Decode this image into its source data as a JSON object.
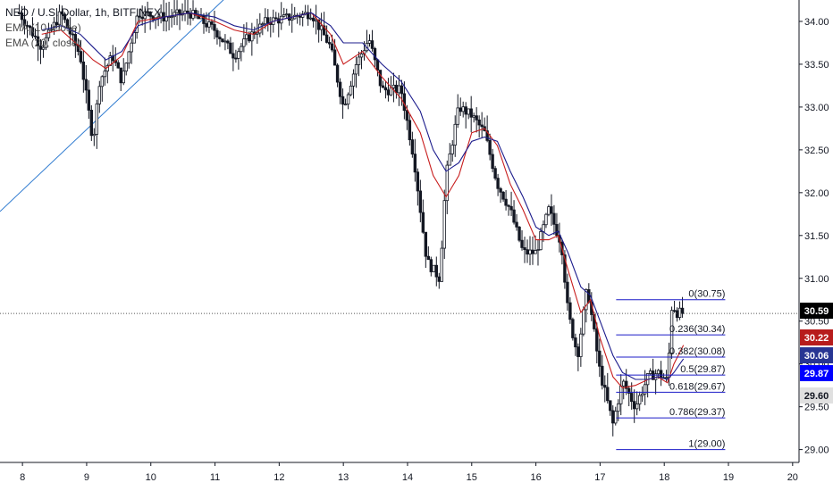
{
  "legend": {
    "symbol": "NEO / U.S. Dollar, 1h, BITFINEX",
    "ema10": "EMA (10, close)",
    "ema20": "EMA (20, close)"
  },
  "colors": {
    "candle": "#131722",
    "ema10": "#c81e1e",
    "ema20": "#1c1c8c",
    "trendline": "#2f7bd0",
    "fib": "#1c1cc8",
    "last_price": "#000000",
    "ema10_badge": "#b71c1c",
    "ema20_badge": "#283593",
    "fib_badge": "#0000ff",
    "low_badge": "#e0e0e0"
  },
  "chart_data": {
    "type": "candlestick",
    "x_ticks": [
      "8",
      "9",
      "10",
      "11",
      "12",
      "13",
      "14",
      "15",
      "16",
      "17",
      "18",
      "19",
      "20"
    ],
    "y_ticks": [
      "29.00",
      "29.50",
      "30.00",
      "30.50",
      "31.00",
      "31.50",
      "32.00",
      "32.50",
      "33.00",
      "33.50",
      "34.00"
    ],
    "ylim": [
      28.85,
      34.25
    ],
    "x_range_days": [
      7.65,
      20.1
    ],
    "last_price": "30.59",
    "badges": [
      {
        "value": "30.59",
        "role": "last"
      },
      {
        "value": "30.22",
        "role": "ema10"
      },
      {
        "value": "30.06",
        "role": "ema20"
      },
      {
        "value": "29.87",
        "role": "fib"
      },
      {
        "value": "29.60",
        "role": "low"
      }
    ],
    "fib_levels": [
      {
        "label": "0(30.75)",
        "value": 30.75
      },
      {
        "label": "0.236(30.34)",
        "value": 30.34
      },
      {
        "label": "0.382(30.08)",
        "value": 30.08
      },
      {
        "label": "0.5(29.87)",
        "value": 29.87
      },
      {
        "label": "0.618(29.67)",
        "value": 29.67
      },
      {
        "label": "0.786(29.37)",
        "value": 29.37
      },
      {
        "label": "1(29.00)",
        "value": 29.0
      }
    ],
    "fib_x_range": [
      17.25,
      18.95
    ],
    "trendline": {
      "from": [
        7.65,
        31.78
      ],
      "to": [
        11.2,
        34.3
      ]
    },
    "series": [
      {
        "name": "EMA (10, close)",
        "values": [
          [
            8.3,
            33.85
          ],
          [
            8.6,
            33.9
          ],
          [
            8.9,
            33.7
          ],
          [
            9.1,
            33.55
          ],
          [
            9.3,
            33.45
          ],
          [
            9.55,
            33.6
          ],
          [
            9.8,
            34.0
          ],
          [
            10.2,
            34.05
          ],
          [
            10.6,
            34.1
          ],
          [
            11.0,
            34.0
          ],
          [
            11.3,
            33.9
          ],
          [
            11.6,
            33.85
          ],
          [
            11.9,
            34.0
          ],
          [
            12.2,
            34.05
          ],
          [
            12.5,
            34.1
          ],
          [
            12.8,
            33.85
          ],
          [
            13.0,
            33.5
          ],
          [
            13.3,
            33.65
          ],
          [
            13.6,
            33.35
          ],
          [
            13.9,
            33.1
          ],
          [
            14.2,
            32.7
          ],
          [
            14.4,
            32.2
          ],
          [
            14.6,
            31.95
          ],
          [
            14.8,
            32.2
          ],
          [
            15.0,
            32.7
          ],
          [
            15.2,
            32.75
          ],
          [
            15.4,
            32.55
          ],
          [
            15.6,
            32.1
          ],
          [
            15.8,
            31.8
          ],
          [
            16.0,
            31.45
          ],
          [
            16.2,
            31.45
          ],
          [
            16.35,
            31.5
          ],
          [
            16.5,
            31.1
          ],
          [
            16.7,
            30.6
          ],
          [
            16.85,
            30.75
          ],
          [
            17.0,
            30.3
          ],
          [
            17.2,
            29.85
          ],
          [
            17.35,
            29.72
          ],
          [
            17.55,
            29.75
          ],
          [
            17.75,
            29.82
          ],
          [
            17.9,
            29.85
          ],
          [
            18.05,
            29.78
          ],
          [
            18.15,
            30.0
          ],
          [
            18.3,
            30.22
          ]
        ]
      },
      {
        "name": "EMA (20, close)",
        "values": [
          [
            8.3,
            33.9
          ],
          [
            8.6,
            33.95
          ],
          [
            8.9,
            33.85
          ],
          [
            9.1,
            33.7
          ],
          [
            9.3,
            33.55
          ],
          [
            9.55,
            33.65
          ],
          [
            9.8,
            33.95
          ],
          [
            10.2,
            34.05
          ],
          [
            10.6,
            34.1
          ],
          [
            11.0,
            34.05
          ],
          [
            11.3,
            33.95
          ],
          [
            11.6,
            33.9
          ],
          [
            11.9,
            34.0
          ],
          [
            12.2,
            34.05
          ],
          [
            12.5,
            34.1
          ],
          [
            12.8,
            33.95
          ],
          [
            13.0,
            33.75
          ],
          [
            13.3,
            33.75
          ],
          [
            13.6,
            33.5
          ],
          [
            13.9,
            33.3
          ],
          [
            14.2,
            32.95
          ],
          [
            14.4,
            32.5
          ],
          [
            14.6,
            32.25
          ],
          [
            14.8,
            32.35
          ],
          [
            15.0,
            32.6
          ],
          [
            15.2,
            32.65
          ],
          [
            15.4,
            32.6
          ],
          [
            15.6,
            32.25
          ],
          [
            15.8,
            31.95
          ],
          [
            16.0,
            31.6
          ],
          [
            16.2,
            31.5
          ],
          [
            16.35,
            31.55
          ],
          [
            16.5,
            31.3
          ],
          [
            16.7,
            30.9
          ],
          [
            16.85,
            30.8
          ],
          [
            17.0,
            30.5
          ],
          [
            17.2,
            30.1
          ],
          [
            17.35,
            29.9
          ],
          [
            17.55,
            29.82
          ],
          [
            17.75,
            29.82
          ],
          [
            17.9,
            29.85
          ],
          [
            18.05,
            29.82
          ],
          [
            18.15,
            29.9
          ],
          [
            18.3,
            30.06
          ]
        ]
      }
    ],
    "price_path": [
      [
        7.95,
        34.1
      ],
      [
        8.3,
        33.7
      ],
      [
        8.6,
        34.1
      ],
      [
        8.9,
        33.6
      ],
      [
        9.1,
        32.6
      ],
      [
        9.2,
        33.3
      ],
      [
        9.4,
        33.6
      ],
      [
        9.55,
        33.3
      ],
      [
        9.8,
        34.1
      ],
      [
        10.2,
        34.05
      ],
      [
        10.6,
        34.1
      ],
      [
        11.0,
        33.9
      ],
      [
        11.3,
        33.6
      ],
      [
        11.5,
        33.8
      ],
      [
        11.8,
        34.0
      ],
      [
        12.2,
        34.05
      ],
      [
        12.5,
        34.1
      ],
      [
        12.8,
        33.7
      ],
      [
        13.0,
        33.0
      ],
      [
        13.2,
        33.5
      ],
      [
        13.4,
        33.8
      ],
      [
        13.6,
        33.2
      ],
      [
        13.9,
        33.2
      ],
      [
        14.1,
        32.4
      ],
      [
        14.3,
        31.2
      ],
      [
        14.5,
        31.0
      ],
      [
        14.6,
        32.2
      ],
      [
        14.8,
        33.0
      ],
      [
        15.0,
        32.9
      ],
      [
        15.2,
        32.7
      ],
      [
        15.4,
        32.1
      ],
      [
        15.6,
        31.8
      ],
      [
        15.8,
        31.3
      ],
      [
        16.0,
        31.3
      ],
      [
        16.2,
        31.8
      ],
      [
        16.4,
        31.4
      ],
      [
        16.5,
        30.6
      ],
      [
        16.65,
        30.1
      ],
      [
        16.8,
        30.9
      ],
      [
        17.0,
        29.9
      ],
      [
        17.2,
        29.3
      ],
      [
        17.35,
        29.8
      ],
      [
        17.55,
        29.5
      ],
      [
        17.75,
        29.85
      ],
      [
        17.9,
        29.9
      ],
      [
        18.05,
        29.8
      ],
      [
        18.12,
        30.7
      ],
      [
        18.2,
        30.6
      ],
      [
        18.3,
        30.59
      ]
    ]
  }
}
